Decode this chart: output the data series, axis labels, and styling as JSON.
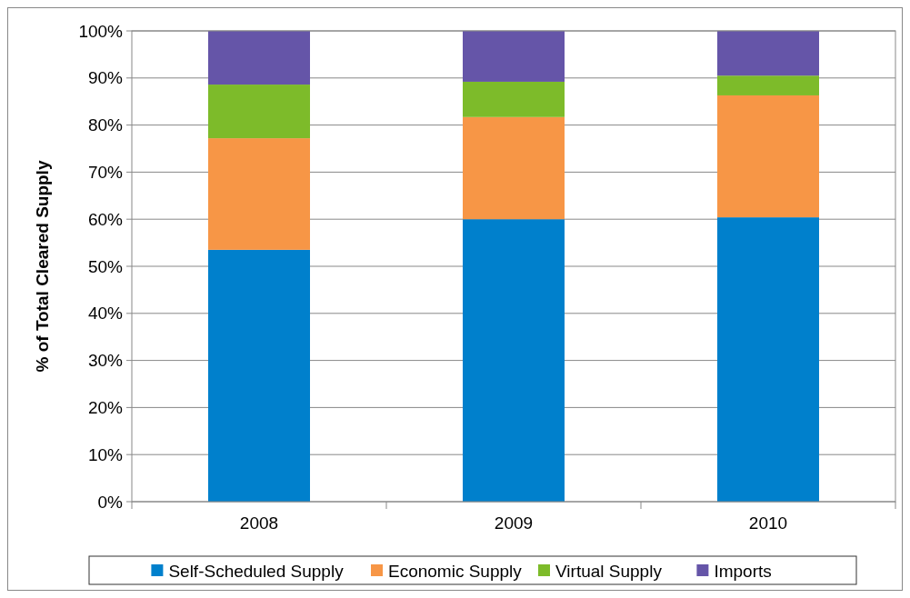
{
  "chart_data": {
    "type": "bar",
    "stacked": true,
    "ylabel": "% of Total Cleared Supply",
    "categories": [
      "2008",
      "2009",
      "2010"
    ],
    "series": [
      {
        "name": "Self-Scheduled Supply",
        "color": "#0080cc",
        "values": [
          53.5,
          60.0,
          60.4
        ]
      },
      {
        "name": "Economic Supply",
        "color": "#f79646",
        "values": [
          23.7,
          21.7,
          25.9
        ]
      },
      {
        "name": "Virtual Supply",
        "color": "#7dbb2a",
        "values": [
          11.4,
          7.5,
          4.2
        ]
      },
      {
        "name": "Imports",
        "color": "#6555a8",
        "values": [
          11.4,
          10.8,
          9.5
        ]
      }
    ],
    "ylim": [
      0,
      100
    ],
    "yticks": [
      {
        "value": 0,
        "label": "0%"
      },
      {
        "value": 10,
        "label": "10%"
      },
      {
        "value": 20,
        "label": "20%"
      },
      {
        "value": 30,
        "label": "30%"
      },
      {
        "value": 40,
        "label": "40%"
      },
      {
        "value": 50,
        "label": "50%"
      },
      {
        "value": 60,
        "label": "60%"
      },
      {
        "value": 70,
        "label": "70%"
      },
      {
        "value": 80,
        "label": "80%"
      },
      {
        "value": 90,
        "label": "90%"
      },
      {
        "value": 100,
        "label": "100%"
      }
    ],
    "grid": "y",
    "legend": "bottom"
  }
}
